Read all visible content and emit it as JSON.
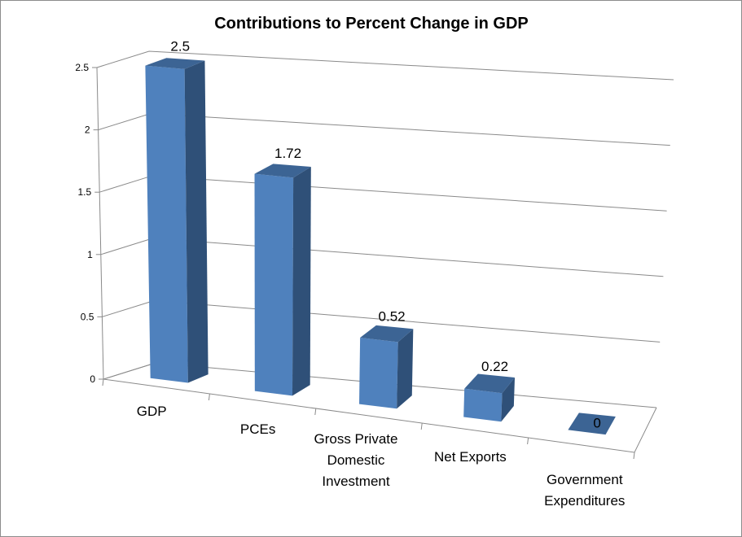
{
  "chart_data": {
    "type": "bar",
    "style": "3d-column",
    "title": "Contributions to Percent Change in GDP",
    "categories": [
      [
        "GDP"
      ],
      [
        "PCEs"
      ],
      [
        "Gross Private",
        "Domestic",
        "Investment"
      ],
      [
        "Net Exports"
      ],
      [
        "Government",
        "Expenditures"
      ]
    ],
    "values": [
      2.5,
      1.72,
      0.52,
      0.22,
      0
    ],
    "data_labels": [
      "2.5",
      "1.72",
      "0.52",
      "0.22",
      "0"
    ],
    "ylim": [
      0,
      2.5
    ],
    "yticks": [
      "0",
      "0.5",
      "1",
      "1.5",
      "2",
      "2.5"
    ],
    "xlabel": "",
    "ylabel": "",
    "grid": true,
    "legend": "none",
    "colors": {
      "front": "#4f81bd",
      "side": "#2f5078",
      "top": "#3c6494",
      "grid": "#8a8a8a"
    }
  }
}
